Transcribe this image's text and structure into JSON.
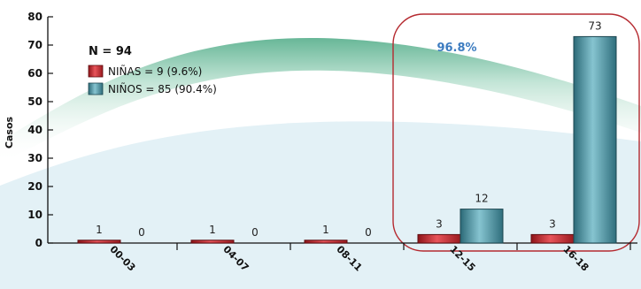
{
  "chart_data": {
    "type": "bar",
    "ylabel": "Casos",
    "ylim": [
      0,
      80
    ],
    "yticks": [
      "0",
      "10",
      "20",
      "30",
      "40",
      "50",
      "60",
      "70",
      "80"
    ],
    "categories": [
      "00-03",
      "04-07",
      "08-11",
      "12-15",
      "16-18"
    ],
    "series": [
      {
        "name": "NIÑAS = 9 (9.6%)",
        "values": [
          1,
          1,
          1,
          3,
          3
        ],
        "color": "#c0262c"
      },
      {
        "name": "NIÑOS = 85 (90.4%)",
        "values": [
          0,
          0,
          0,
          12,
          73
        ],
        "color": "#3f8494"
      }
    ],
    "legend": {
      "title": "N = 94",
      "position": "top-left"
    },
    "annotation": {
      "text": "96.8%",
      "color": "#3d7cc0",
      "outline_color": "#b52a30"
    },
    "grid": false
  }
}
